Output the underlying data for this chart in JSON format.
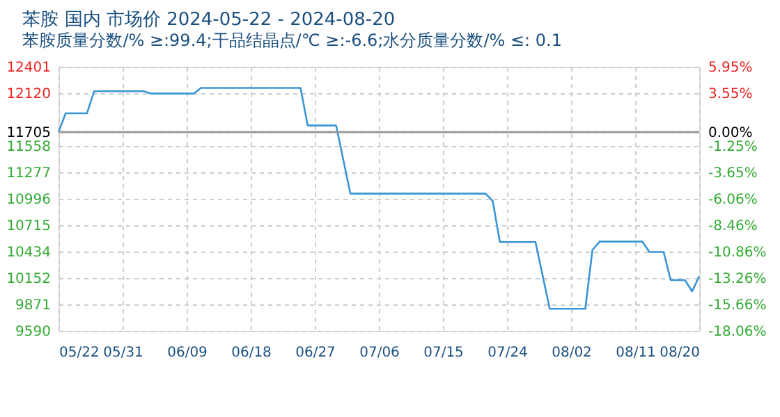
{
  "chart_data": {
    "type": "line",
    "title": "苯胺 国内 市场价 2024-05-22 - 2024-08-20",
    "subtitle": "苯胺质量分数/% ≥:99.4;干品结晶点/℃  ≥:-6.6;水分质量分数/%  ≤: 0.1",
    "x": [
      "2024-05-22",
      "2024-05-23",
      "2024-05-26",
      "2024-05-27",
      "2024-06-03",
      "2024-06-04",
      "2024-06-10",
      "2024-06-11",
      "2024-06-25",
      "2024-06-26",
      "2024-06-30",
      "2024-07-02",
      "2024-07-21",
      "2024-07-22",
      "2024-07-23",
      "2024-07-28",
      "2024-07-30",
      "2024-08-04",
      "2024-08-05",
      "2024-08-06",
      "2024-08-12",
      "2024-08-13",
      "2024-08-15",
      "2024-08-16",
      "2024-08-18",
      "2024-08-19",
      "2024-08-20"
    ],
    "series": [
      {
        "color": "#3a95d5",
        "values": [
          11705,
          11905,
          11905,
          12140,
          12140,
          12115,
          12115,
          12175,
          12175,
          11775,
          11775,
          11050,
          11050,
          10970,
          10535,
          10535,
          9825,
          9825,
          10450,
          10540,
          10540,
          10430,
          10430,
          10130,
          10130,
          10010,
          10170
        ]
      }
    ],
    "xlim": [
      "2024-05-22",
      "2024-08-20"
    ],
    "xticks": [
      {
        "value": "2024-05-22",
        "label": "05/22"
      },
      {
        "value": "2024-05-31",
        "label": "05/31"
      },
      {
        "value": "2024-06-09",
        "label": "06/09"
      },
      {
        "value": "2024-06-18",
        "label": "06/18"
      },
      {
        "value": "2024-06-27",
        "label": "06/27"
      },
      {
        "value": "2024-07-06",
        "label": "07/06"
      },
      {
        "value": "2024-07-15",
        "label": "07/15"
      },
      {
        "value": "2024-07-24",
        "label": "07/24"
      },
      {
        "value": "2024-08-02",
        "label": "08/02"
      },
      {
        "value": "2024-08-11",
        "label": "08/11"
      },
      {
        "value": "2024-08-20",
        "label": "08/20"
      }
    ],
    "ylim": [
      9590,
      12401
    ],
    "yticks": [
      9590,
      9871,
      10152,
      10434,
      10715,
      10996,
      11277,
      11558,
      11705,
      12120,
      12401
    ],
    "y2lim": [
      -18.06,
      5.95
    ],
    "y2ticks": [
      {
        "value": -18.06,
        "label": "-18.06%"
      },
      {
        "value": -15.66,
        "label": "-15.66%"
      },
      {
        "value": -13.26,
        "label": "-13.26%"
      },
      {
        "value": -10.86,
        "label": "-10.86%"
      },
      {
        "value": -8.46,
        "label": "-8.46%"
      },
      {
        "value": -6.06,
        "label": "-6.06%"
      },
      {
        "value": -3.65,
        "label": "-3.65%"
      },
      {
        "value": -1.25,
        "label": "-1.25%"
      },
      {
        "value": 0,
        "label": "0.00%"
      },
      {
        "value": 3.55,
        "label": "3.55%"
      },
      {
        "value": 5.95,
        "label": "5.95%"
      }
    ],
    "ref_lines": [
      {
        "axis": "y",
        "value": 11705,
        "color": "#999999"
      }
    ],
    "grid": true,
    "marker": "none",
    "line_style": "solid"
  }
}
